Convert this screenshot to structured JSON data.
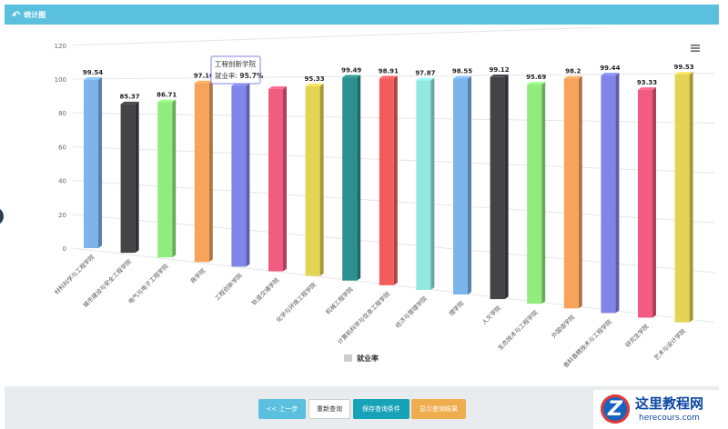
{
  "header": {
    "title": "统计图",
    "back_icon": "back-arrow-icon"
  },
  "chart_data": {
    "type": "bar",
    "categories": [
      "材料科学与工程学院",
      "城市建设与安全工程学院",
      "电气与电子工程学院",
      "商学院",
      "工程创新学院",
      "轨道交通学院",
      "化学与环境工程学院",
      "机械工程学院",
      "计算机科学与信息工程学院",
      "经济与管理学院",
      "理学院",
      "人文学院",
      "生态技术与工程学院",
      "外国语学院",
      "香料香精技术与工程学院",
      "研究生学院",
      "艺术与设计学院"
    ],
    "series": [
      {
        "name": "就业率",
        "values": [
          99.54,
          85.37,
          86.71,
          97.16,
          95.7,
          93.95,
          95.33,
          99.49,
          98.91,
          97.87,
          98.55,
          99.12,
          95.69,
          98.2,
          99.44,
          93.33,
          99.53
        ]
      }
    ],
    "data_labels": [
      "99.54",
      "85.37",
      "86.71",
      "97.16",
      "",
      "",
      "95.33",
      "99.49",
      "98.91",
      "97.87",
      "98.55",
      "99.12",
      "95.69",
      "98.2",
      "99.44",
      "93.33",
      "99.53"
    ],
    "colors": [
      "#7cb5ec",
      "#434348",
      "#90ed7d",
      "#f7a35c",
      "#8085e9",
      "#f15c80",
      "#e4d354",
      "#2b908f",
      "#f45b5b",
      "#91e8e1",
      "#7cb5ec",
      "#434348",
      "#90ed7d",
      "#f7a35c",
      "#8085e9",
      "#f15c80",
      "#e4d354"
    ],
    "y_ticks": [
      "0",
      "20",
      "40",
      "60",
      "80",
      "100",
      "120"
    ],
    "ylim": [
      0,
      120
    ],
    "tooltip": {
      "category": "工程创新学院",
      "label": "就业率",
      "value": "95.7%"
    },
    "legend": {
      "label": "就业率",
      "position": "bottom"
    },
    "menu_icon": "hamburger-menu-icon",
    "style": "3d"
  },
  "footer": {
    "prev_label": "<< 上一步",
    "requery_label": "重新查询",
    "save_label": "保存查询条件",
    "show_label": "显示查询结果"
  },
  "watermark": {
    "title": "这里教程网",
    "url": "herecours.com"
  }
}
